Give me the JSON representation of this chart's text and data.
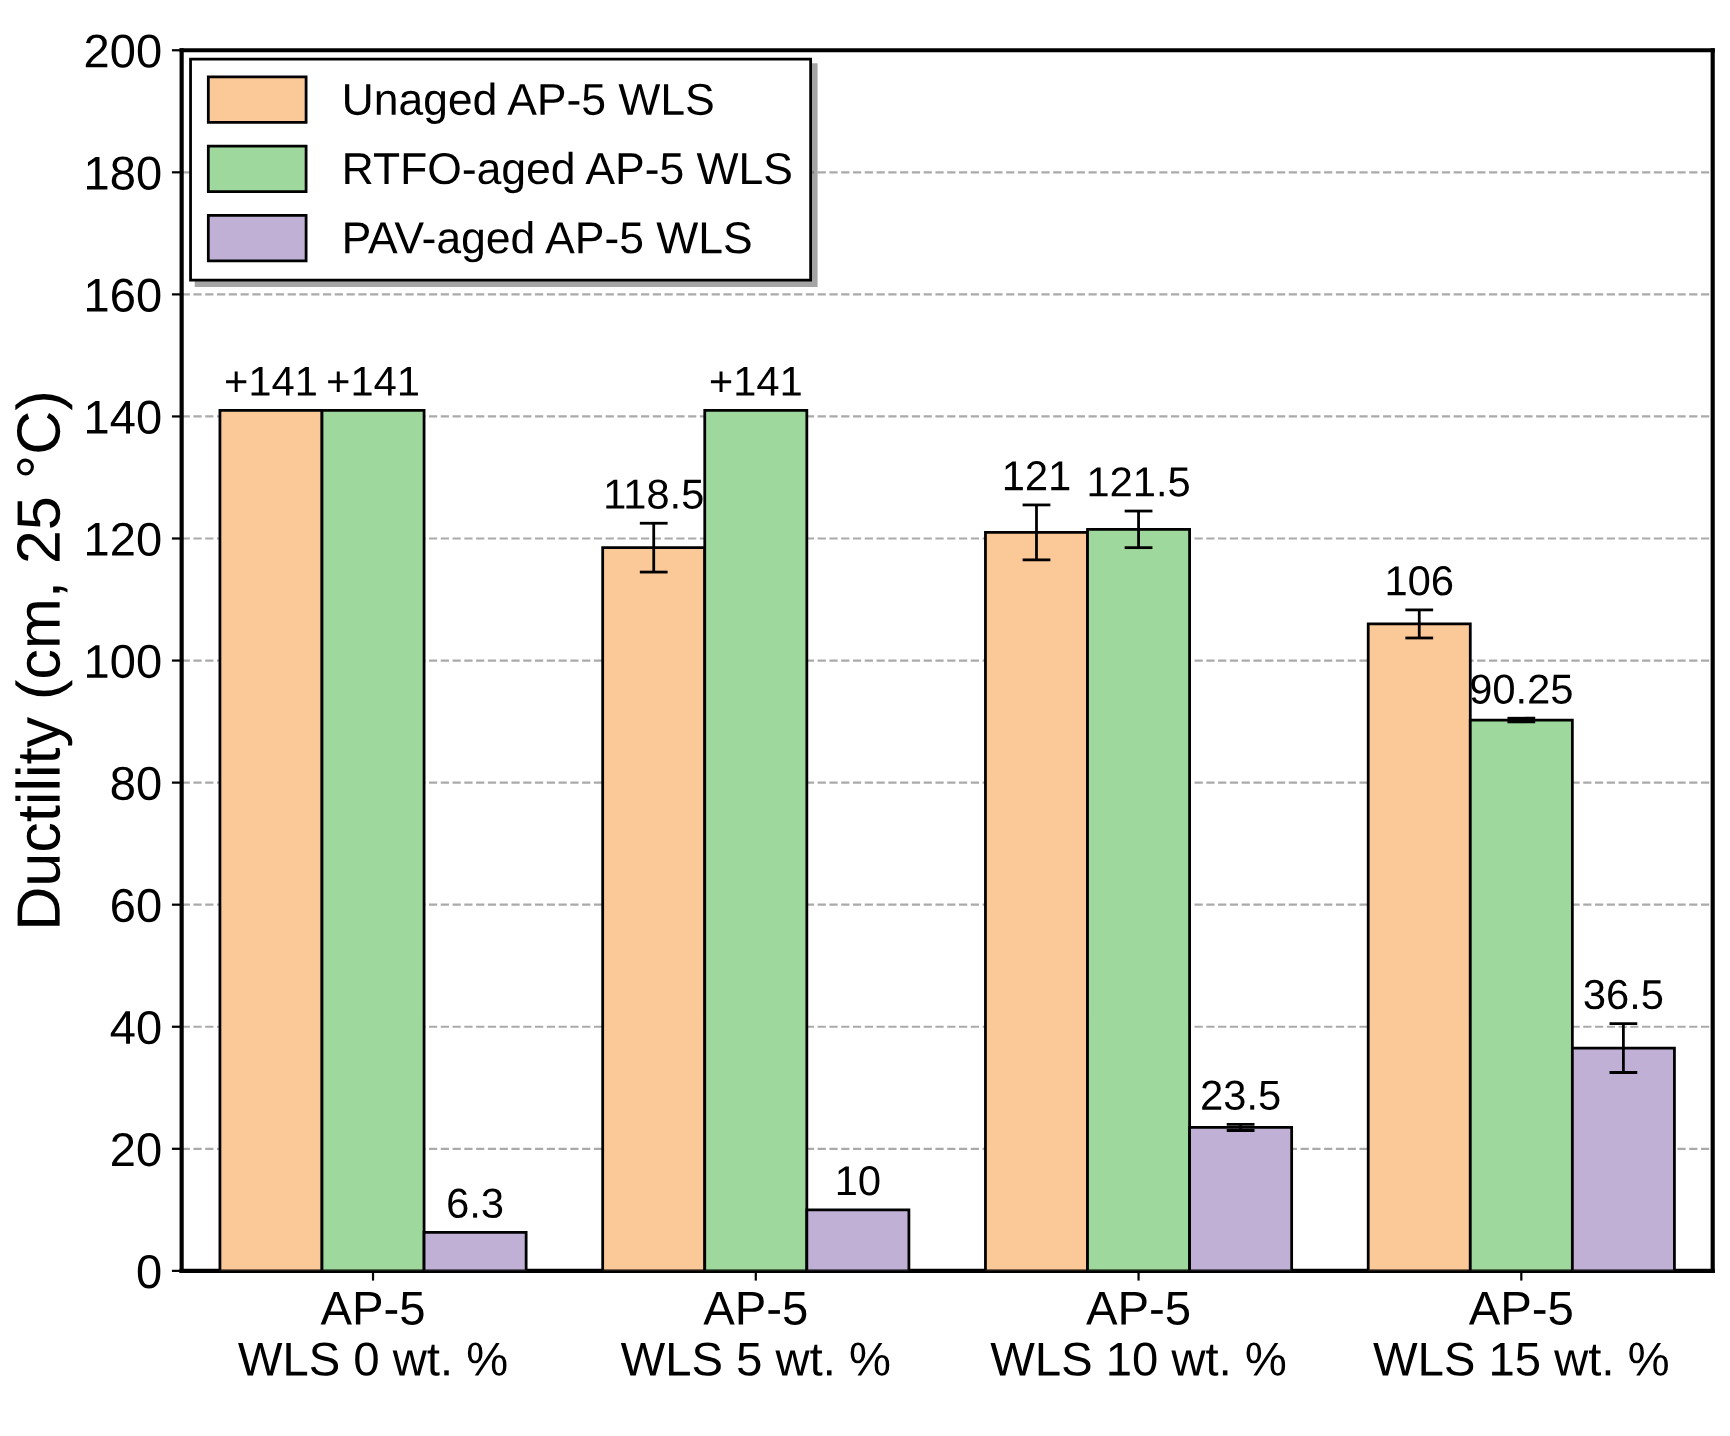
{
  "chart_data": {
    "type": "bar",
    "ylabel": "Ductility (cm, 25 °C)",
    "categories": [
      "AP-5\nWLS 0 wt. %",
      "AP-5\nWLS 5 wt. %",
      "AP-5\nWLS 10 wt. %",
      "AP-5\nWLS 15 wt. %"
    ],
    "series": [
      {
        "name": "Unaged AP-5 WLS",
        "color": "#fbc897",
        "values": [
          141,
          118.5,
          121,
          106
        ],
        "errors": [
          null,
          4,
          4.5,
          2.3
        ],
        "value_labels": [
          "+141",
          "118.5",
          "121",
          "106"
        ]
      },
      {
        "name": "RTFO-aged AP-5 WLS",
        "color": "#9ed89c",
        "values": [
          141,
          141,
          121.5,
          90.25
        ],
        "errors": [
          null,
          null,
          3,
          0.3
        ],
        "value_labels": [
          "+141",
          "+141",
          "121.5",
          "90.25"
        ]
      },
      {
        "name": "PAV-aged AP-5 WLS",
        "color": "#c0b0d6",
        "values": [
          6.3,
          10,
          23.5,
          36.5
        ],
        "errors": [
          null,
          null,
          0.5,
          4
        ],
        "value_labels": [
          "6.3",
          "10",
          "23.5",
          "36.5"
        ]
      }
    ],
    "ylim": [
      0,
      200
    ],
    "yticks": [
      0,
      20,
      40,
      60,
      80,
      100,
      120,
      140,
      160,
      180,
      200
    ],
    "grid": "y",
    "legend": "top left"
  }
}
